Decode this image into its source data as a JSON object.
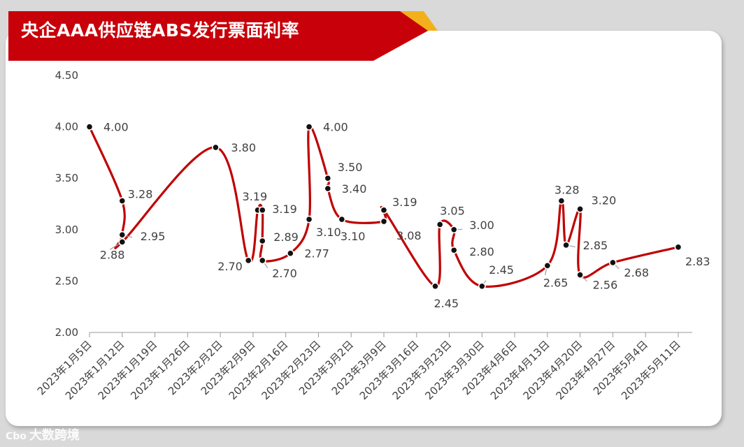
{
  "title": "央企AAA供应链ABS发行票面利率",
  "watermark": {
    "logo": "Cbo",
    "text": "大数跨境"
  },
  "colors": {
    "banner": "#c8000a",
    "accent": "#f2b11c",
    "line": "#c00000",
    "marker": "#111111",
    "grid_axis": "#999999",
    "leader": "#a6a6a6"
  },
  "chart_data": {
    "type": "line",
    "title": "央企AAA供应链ABS发行票面利率",
    "xlabel": "",
    "ylabel": "",
    "ylim": [
      2.0,
      4.5
    ],
    "yticks": [
      "2.00",
      "2.50",
      "3.00",
      "3.50",
      "4.00",
      "4.50"
    ],
    "xrange": [
      "2023-01-05",
      "2023-05-14"
    ],
    "xticks": [
      {
        "date": "2023-01-05",
        "label": "2023年1月5日"
      },
      {
        "date": "2023-01-12",
        "label": "2023年1月12日"
      },
      {
        "date": "2023-01-19",
        "label": "2023年1月19日"
      },
      {
        "date": "2023-01-26",
        "label": "2023年1月26日"
      },
      {
        "date": "2023-02-02",
        "label": "2023年2月2日"
      },
      {
        "date": "2023-02-09",
        "label": "2023年2月9日"
      },
      {
        "date": "2023-02-16",
        "label": "2023年2月16日"
      },
      {
        "date": "2023-02-23",
        "label": "2023年2月23日"
      },
      {
        "date": "2023-03-02",
        "label": "2023年3月2日"
      },
      {
        "date": "2023-03-09",
        "label": "2023年3月9日"
      },
      {
        "date": "2023-03-16",
        "label": "2023年3月16日"
      },
      {
        "date": "2023-03-23",
        "label": "2023年3月23日"
      },
      {
        "date": "2023-03-30",
        "label": "2023年3月30日"
      },
      {
        "date": "2023-04-06",
        "label": "2023年4月6日"
      },
      {
        "date": "2023-04-13",
        "label": "2023年4月13日"
      },
      {
        "date": "2023-04-20",
        "label": "2023年4月20日"
      },
      {
        "date": "2023-04-27",
        "label": "2023年4月27日"
      },
      {
        "date": "2023-05-04",
        "label": "2023年5月4日"
      },
      {
        "date": "2023-05-11",
        "label": "2023年5月11日"
      }
    ],
    "points": [
      {
        "x": "2023-01-05",
        "y": 4.0,
        "label": "4.00"
      },
      {
        "x": "2023-01-12",
        "y": 3.28,
        "label": "3.28"
      },
      {
        "x": "2023-01-12",
        "y": 2.95,
        "label": "2.95"
      },
      {
        "x": "2023-01-12",
        "y": 2.88,
        "label": "2.88"
      },
      {
        "x": "2023-02-01",
        "y": 3.8,
        "label": "3.80"
      },
      {
        "x": "2023-02-08",
        "y": 2.7,
        "label": "2.70"
      },
      {
        "x": "2023-02-10",
        "y": 3.19,
        "label": "3.19"
      },
      {
        "x": "2023-02-11",
        "y": 3.19,
        "label": "3.19"
      },
      {
        "x": "2023-02-11",
        "y": 2.89,
        "label": "2.89"
      },
      {
        "x": "2023-02-11",
        "y": 2.7,
        "label": "2.70"
      },
      {
        "x": "2023-02-17",
        "y": 2.77,
        "label": "2.77"
      },
      {
        "x": "2023-02-21",
        "y": 3.1,
        "label": "3.10"
      },
      {
        "x": "2023-02-21",
        "y": 4.0,
        "label": "4.00"
      },
      {
        "x": "2023-02-25",
        "y": 3.5,
        "label": "3.50"
      },
      {
        "x": "2023-02-25",
        "y": 3.4,
        "label": "3.40"
      },
      {
        "x": "2023-02-28",
        "y": 3.1,
        "label": "3.10"
      },
      {
        "x": "2023-03-09",
        "y": 3.08,
        "label": "3.08"
      },
      {
        "x": "2023-03-09",
        "y": 3.19,
        "label": "3.19"
      },
      {
        "x": "2023-03-20",
        "y": 2.45,
        "label": "2.45"
      },
      {
        "x": "2023-03-21",
        "y": 3.05,
        "label": "3.05"
      },
      {
        "x": "2023-03-24",
        "y": 3.0,
        "label": "3.00"
      },
      {
        "x": "2023-03-24",
        "y": 2.8,
        "label": "2.80"
      },
      {
        "x": "2023-03-30",
        "y": 2.45,
        "label": "2.45"
      },
      {
        "x": "2023-04-13",
        "y": 2.65,
        "label": "2.65"
      },
      {
        "x": "2023-04-16",
        "y": 3.28,
        "label": "3.28"
      },
      {
        "x": "2023-04-17",
        "y": 2.85,
        "label": "2.85"
      },
      {
        "x": "2023-04-20",
        "y": 3.2,
        "label": "3.20"
      },
      {
        "x": "2023-04-20",
        "y": 2.56,
        "label": "2.56"
      },
      {
        "x": "2023-04-27",
        "y": 2.68,
        "label": "2.68"
      },
      {
        "x": "2023-05-11",
        "y": 2.83,
        "label": "2.83"
      }
    ],
    "grid": false,
    "legend": "none"
  }
}
